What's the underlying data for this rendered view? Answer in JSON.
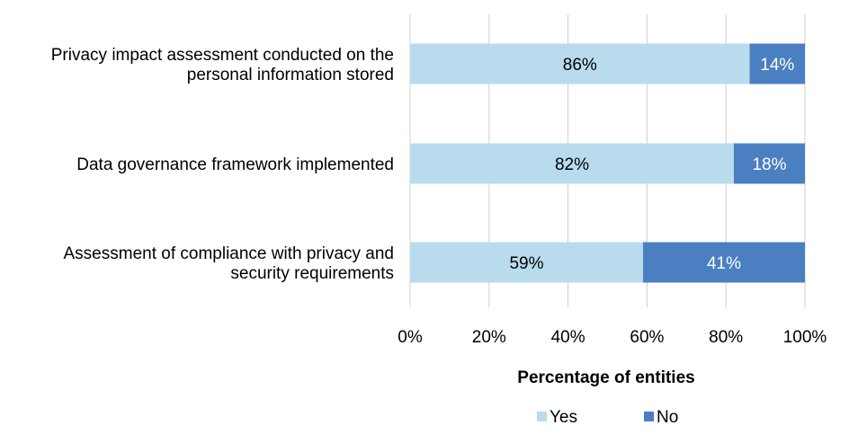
{
  "chart_data": {
    "type": "bar",
    "orientation": "horizontal",
    "stacked": true,
    "categories": [
      [
        "Privacy impact assessment conducted on the",
        "personal information stored"
      ],
      [
        "Data governance framework implemented"
      ],
      [
        "Assessment of compliance with privacy and",
        "security requirements"
      ]
    ],
    "series": [
      {
        "name": "Yes",
        "values": [
          86,
          82,
          59
        ],
        "color": "#b8dcee",
        "label_color": "#000000"
      },
      {
        "name": "No",
        "values": [
          14,
          18,
          41
        ],
        "color": "#4a7fc1",
        "label_color": "#ffffff"
      }
    ],
    "data_labels": [
      [
        "86%",
        "82%",
        "59%"
      ],
      [
        "14%",
        "18%",
        "41%"
      ]
    ],
    "xlim": [
      0,
      100
    ],
    "xticks": [
      "0%",
      "20%",
      "40%",
      "60%",
      "80%",
      "100%"
    ],
    "xlabel": "Percentage of entities",
    "grid": "vertical",
    "gridline_color": "#d0d0d0",
    "legend_position": "bottom"
  }
}
